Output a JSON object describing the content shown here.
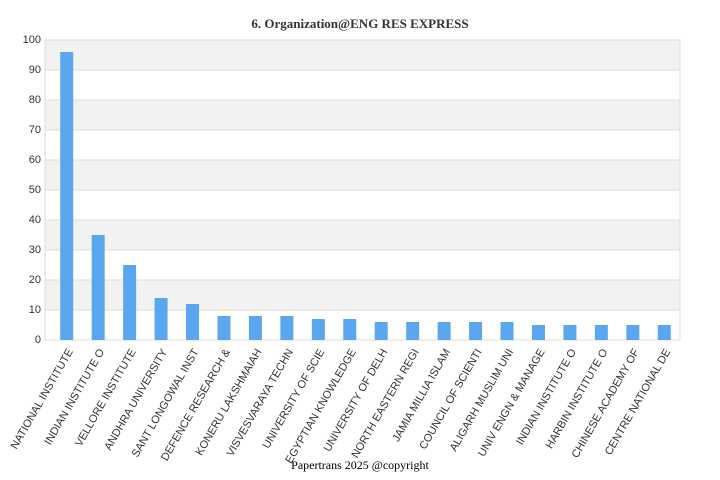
{
  "chart_data": {
    "type": "bar",
    "title": "6. Organization@ENG RES EXPRESS",
    "annotation": "Papertrans 2025 @copyright",
    "categories": [
      "NATIONAL INSTITUTE",
      "INDIAN INSTITUTE O",
      "VELLORE INSTITUTE",
      "ANDHRA UNIVERSITY",
      "SANT LONGOWAL INST",
      "DEFENCE RESEARCH &",
      "KONERU LAKSHMAIAH",
      "VISVESVARAYA TECHN",
      "UNIVERSITY OF SCIE",
      "EGYPTIAN KNOWLEDGE",
      "UNIVERSITY OF DELH",
      "NORTH EASTERN REGI",
      "JAMIA MILLIA ISLAM",
      "COUNCIL OF SCIENTI",
      "ALIGARH MUSLIM UNI",
      "UNIV ENGN & MANAGE",
      "INDIAN INSTITUTE O",
      "HARBIN INSTITUTE O",
      "CHINESE ACADEMY OF",
      "CENTRE NATIONAL DE"
    ],
    "values": [
      96,
      35,
      25,
      14,
      12,
      8,
      8,
      8,
      7,
      7,
      6,
      6,
      6,
      6,
      6,
      5,
      5,
      5,
      5,
      5
    ],
    "color": "#5aa7f0",
    "ylim": [
      0,
      100
    ],
    "yticks": [
      0,
      10,
      20,
      30,
      40,
      50,
      60,
      70,
      80,
      90,
      100
    ],
    "grid": true
  }
}
